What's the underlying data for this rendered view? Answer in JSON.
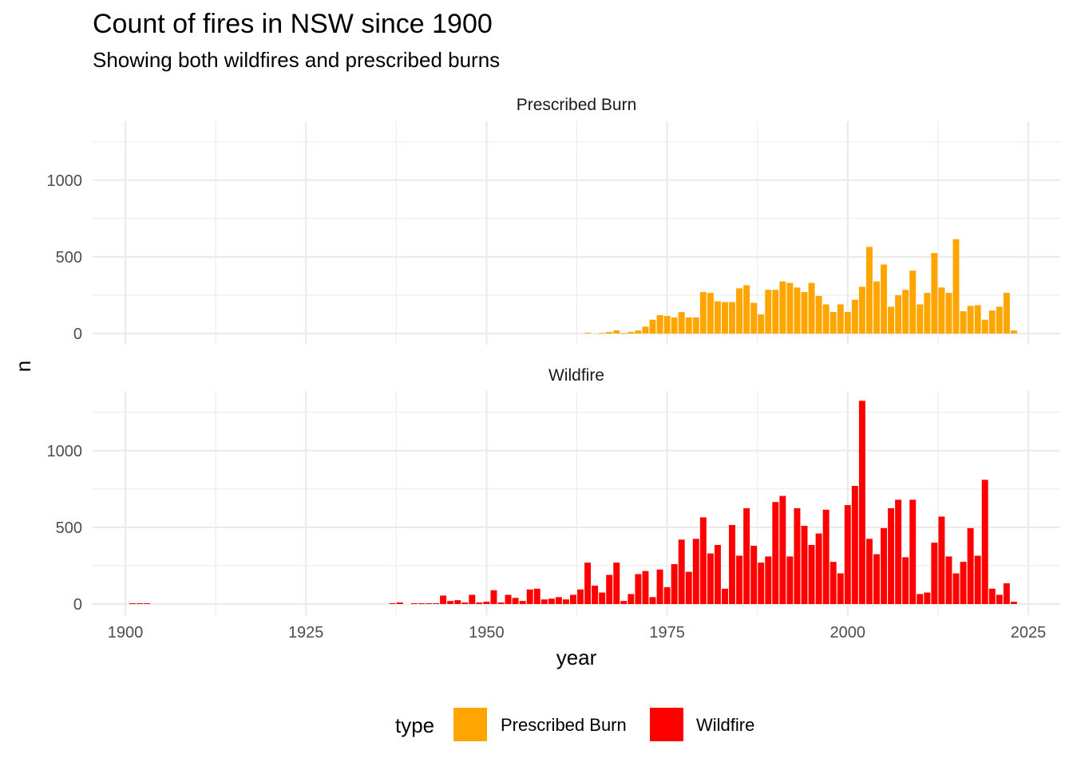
{
  "chart_data": {
    "type": "bar",
    "title": "Count of fires in NSW since 1900",
    "subtitle": "Showing both wildfires and prescribed burns",
    "xlabel": "year",
    "ylabel": "n",
    "xlim": [
      1900,
      2025
    ],
    "ylim": [
      0,
      1400
    ],
    "x_ticks": [
      1900,
      1925,
      1950,
      1975,
      2000,
      2025
    ],
    "y_ticks": [
      0,
      500,
      1000
    ],
    "grid": true,
    "legend": {
      "title": "type",
      "position": "bottom"
    },
    "facets": [
      {
        "name": "Prescribed Burn",
        "color": "#FFA500",
        "years": [
          1964,
          1966,
          1967,
          1968,
          1969,
          1970,
          1971,
          1972,
          1973,
          1974,
          1975,
          1976,
          1977,
          1978,
          1979,
          1980,
          1981,
          1982,
          1983,
          1984,
          1985,
          1986,
          1987,
          1988,
          1989,
          1990,
          1991,
          1992,
          1993,
          1994,
          1995,
          1996,
          1997,
          1998,
          1999,
          2000,
          2001,
          2002,
          2003,
          2004,
          2005,
          2006,
          2007,
          2008,
          2009,
          2010,
          2011,
          2012,
          2013,
          2014,
          2015,
          2016,
          2017,
          2018,
          2019,
          2020,
          2021,
          2022,
          2023
        ],
        "values": [
          5,
          3,
          10,
          20,
          2,
          10,
          20,
          45,
          90,
          120,
          115,
          105,
          140,
          105,
          105,
          270,
          265,
          210,
          205,
          205,
          295,
          315,
          200,
          125,
          285,
          285,
          340,
          330,
          300,
          270,
          330,
          245,
          190,
          140,
          190,
          140,
          220,
          305,
          565,
          340,
          450,
          175,
          250,
          285,
          410,
          190,
          265,
          525,
          300,
          265,
          615,
          145,
          180,
          185,
          90,
          150,
          175,
          265,
          20
        ]
      },
      {
        "name": "Wildfire",
        "color": "#FF0000",
        "years": [
          1901,
          1902,
          1903,
          1937,
          1938,
          1940,
          1941,
          1942,
          1943,
          1944,
          1945,
          1946,
          1947,
          1948,
          1949,
          1950,
          1951,
          1952,
          1953,
          1954,
          1955,
          1956,
          1957,
          1958,
          1959,
          1960,
          1961,
          1962,
          1963,
          1964,
          1965,
          1966,
          1967,
          1968,
          1969,
          1970,
          1971,
          1972,
          1973,
          1974,
          1975,
          1976,
          1977,
          1978,
          1979,
          1980,
          1981,
          1982,
          1983,
          1984,
          1985,
          1986,
          1987,
          1988,
          1989,
          1990,
          1991,
          1992,
          1993,
          1994,
          1995,
          1996,
          1997,
          1998,
          1999,
          2000,
          2001,
          2002,
          2003,
          2004,
          2005,
          2006,
          2007,
          2008,
          2009,
          2010,
          2011,
          2012,
          2013,
          2014,
          2015,
          2016,
          2017,
          2018,
          2019,
          2020,
          2021,
          2022,
          2023
        ],
        "values": [
          5,
          5,
          5,
          5,
          10,
          5,
          5,
          5,
          5,
          55,
          20,
          25,
          10,
          60,
          10,
          15,
          90,
          10,
          60,
          40,
          20,
          95,
          100,
          30,
          35,
          45,
          30,
          60,
          95,
          270,
          120,
          75,
          190,
          270,
          20,
          65,
          195,
          215,
          45,
          225,
          110,
          260,
          420,
          210,
          425,
          565,
          330,
          385,
          100,
          515,
          315,
          625,
          380,
          270,
          310,
          665,
          705,
          310,
          625,
          510,
          385,
          460,
          615,
          275,
          200,
          645,
          770,
          1325,
          425,
          325,
          495,
          625,
          680,
          305,
          680,
          65,
          75,
          400,
          570,
          310,
          200,
          275,
          495,
          315,
          810,
          100,
          60,
          135,
          15
        ]
      }
    ]
  },
  "legend_items": [
    "Prescribed Burn",
    "Wildfire"
  ]
}
